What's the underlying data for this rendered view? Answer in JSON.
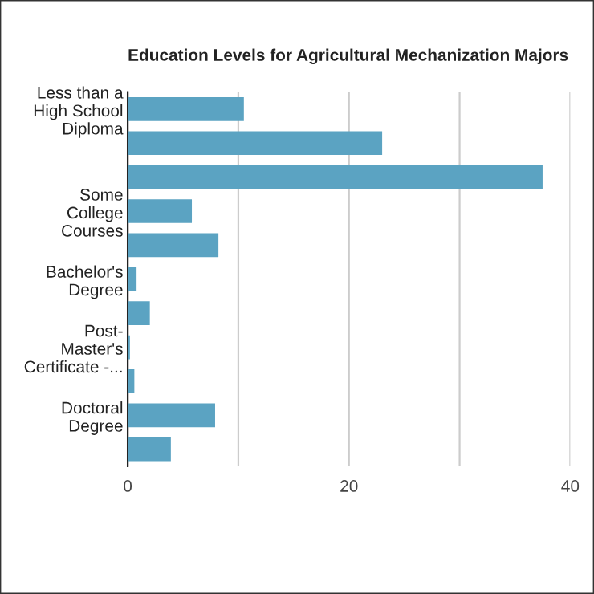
{
  "chart_data": {
    "type": "bar",
    "orientation": "horizontal",
    "title": "Education Levels for Agricultural Mechanization Majors",
    "categories": [
      "Less than a High School Diploma",
      null,
      null,
      "Some College Courses",
      null,
      "Bachelor's Degree",
      null,
      "Post-Master's Certificate -...",
      null,
      "Doctoral Degree",
      null
    ],
    "values": [
      10.5,
      23.0,
      37.5,
      5.8,
      8.2,
      0.8,
      2.0,
      0.2,
      0.6,
      7.9,
      3.9
    ],
    "color": "#5ba3c2",
    "xlim": [
      0,
      40
    ],
    "xticks": [
      0,
      {
        "value": 10,
        "label": null
      },
      20,
      {
        "value": 30,
        "label": null
      },
      40
    ],
    "grid": "x",
    "legend": false
  }
}
